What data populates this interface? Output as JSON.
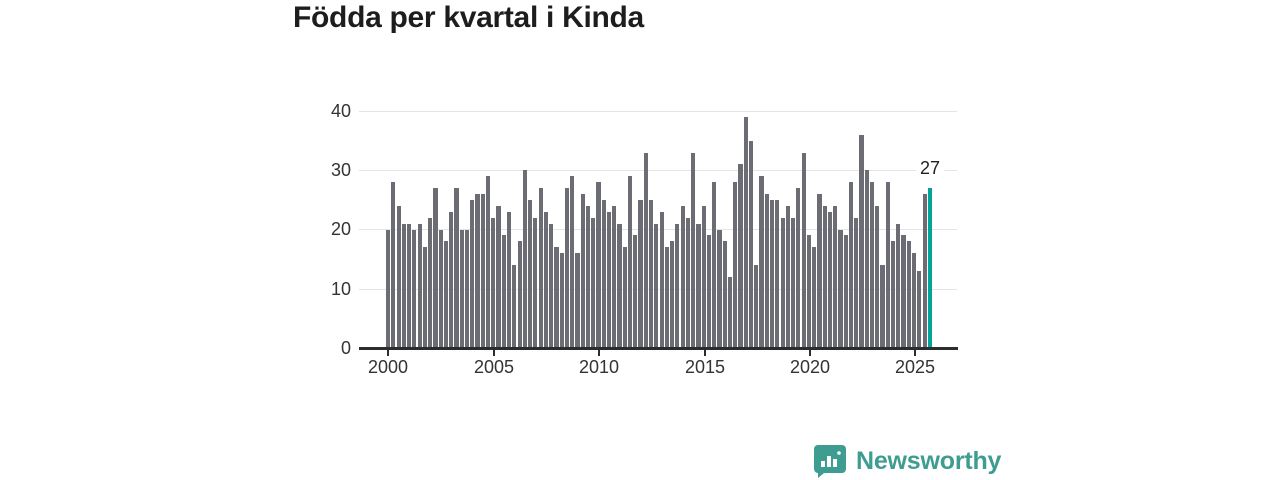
{
  "title": "Födda per kvartal i Kinda",
  "colors": {
    "bar": "#6c6c74",
    "highlight_bar": "#00a49a",
    "axis": "#2d2d30",
    "gridline": "#e4e4e6",
    "tick_text": "#333333",
    "title_text": "#1d1d1d",
    "logo_teal": "#3e9d90"
  },
  "chart_data": {
    "type": "bar",
    "title": "Födda per kvartal i Kinda",
    "x_unit": "quarter",
    "x_range": "2000 Q1 – 2025 Q4",
    "ylim": [
      0,
      40
    ],
    "grid": "horizontal",
    "legend": "none",
    "y_tick_labels": [
      "0",
      "10",
      "20",
      "30",
      "40"
    ],
    "x_tick_labels": [
      "2000",
      "2005",
      "2010",
      "2015",
      "2020",
      "2025"
    ],
    "highlight_last": true,
    "last_value_label": "27",
    "values": [
      20,
      28,
      24,
      21,
      21,
      20,
      21,
      17,
      22,
      27,
      20,
      18,
      23,
      27,
      20,
      20,
      25,
      26,
      26,
      29,
      22,
      24,
      19,
      23,
      14,
      18,
      30,
      25,
      22,
      27,
      23,
      21,
      17,
      16,
      27,
      29,
      16,
      26,
      24,
      22,
      28,
      25,
      23,
      24,
      21,
      17,
      29,
      19,
      25,
      33,
      25,
      21,
      23,
      17,
      18,
      21,
      24,
      22,
      33,
      21,
      24,
      19,
      28,
      20,
      18,
      12,
      28,
      31,
      39,
      35,
      14,
      29,
      26,
      25,
      25,
      22,
      24,
      22,
      27,
      33,
      19,
      17,
      26,
      24,
      23,
      24,
      20,
      19,
      28,
      22,
      36,
      30,
      28,
      24,
      14,
      28,
      18,
      21,
      19,
      18,
      16,
      13,
      26,
      27
    ]
  },
  "branding": {
    "logo_text": "Newsworthy",
    "logo_icon": "newsworthy-chart-bubble-icon"
  }
}
